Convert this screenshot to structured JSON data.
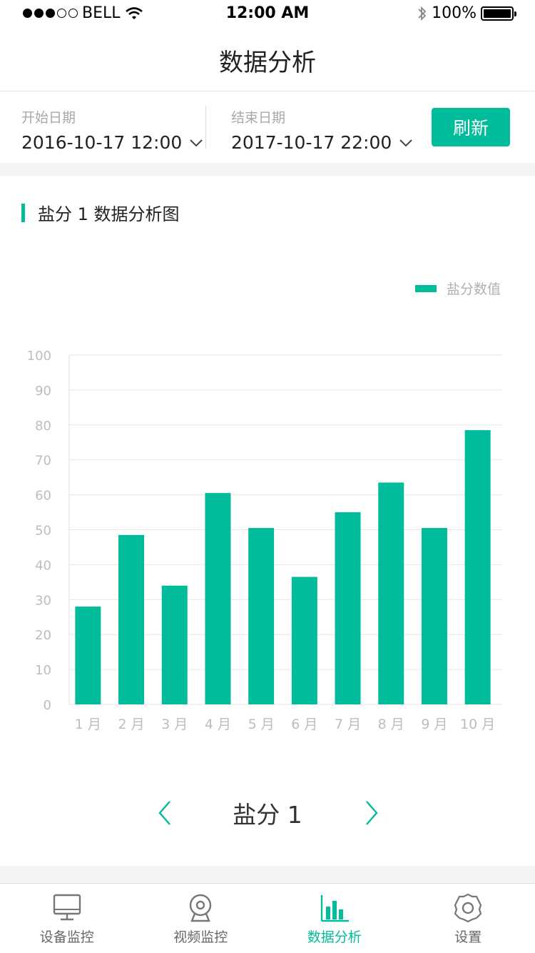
{
  "status_bar": {
    "carrier": "BELL",
    "time": "12:00 AM",
    "battery": "100%"
  },
  "header": {
    "title": "数据分析"
  },
  "filter": {
    "start_label": "开始日期",
    "start_value": "2016-10-17 12:00",
    "end_label": "结束日期",
    "end_value": "2017-10-17 22:00",
    "refresh_label": "刷新"
  },
  "section": {
    "title": "盐分 1 数据分析图"
  },
  "chart_data": {
    "type": "bar",
    "title": "",
    "xlabel": "",
    "ylabel": "",
    "ylim": [
      0,
      100
    ],
    "yticks": [
      0,
      10,
      20,
      30,
      40,
      50,
      60,
      70,
      80,
      90,
      100
    ],
    "categories": [
      "1 月",
      "2 月",
      "3 月",
      "4 月",
      "5 月",
      "6 月",
      "7 月",
      "8 月",
      "9 月",
      "10 月"
    ],
    "series": [
      {
        "name": "盐分数值",
        "values": [
          28,
          48.5,
          34,
          60.5,
          50.5,
          36.5,
          55,
          63.5,
          50.5,
          78.5
        ],
        "color": "#00bc9b"
      }
    ],
    "legend": "top-right",
    "grid": true
  },
  "pager": {
    "label": "盐分 1"
  },
  "tabs": [
    {
      "label": "设备监控",
      "icon": "monitor-icon",
      "active": false
    },
    {
      "label": "视频监控",
      "icon": "webcam-icon",
      "active": false
    },
    {
      "label": "数据分析",
      "icon": "bar-chart-icon",
      "active": true
    },
    {
      "label": "设置",
      "icon": "gear-icon",
      "active": false
    }
  ],
  "colors": {
    "accent": "#00bc9b",
    "inactive": "#666666"
  }
}
